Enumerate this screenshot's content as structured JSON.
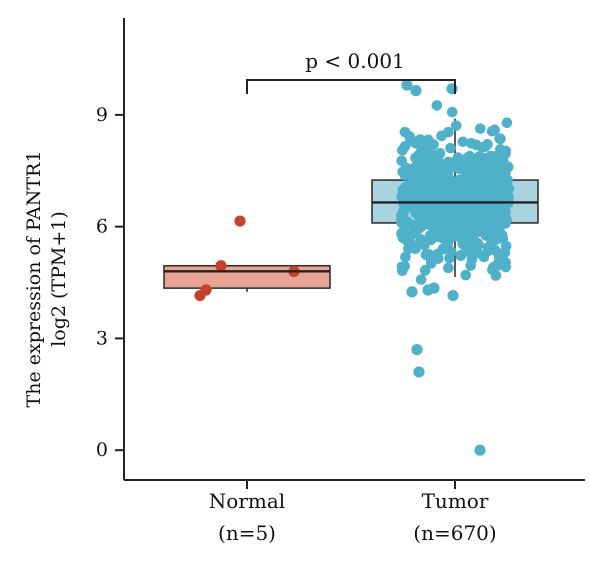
{
  "chart_data": {
    "type": "box",
    "ylabel_lines": [
      "The expression of PANTR1",
      "log2 (TPM+1)"
    ],
    "ylim": [
      -0.8,
      11.6
    ],
    "yticks": [
      0,
      3,
      6,
      9
    ],
    "yticklabels": [
      "0",
      "3",
      "6",
      "9"
    ],
    "categories": [
      {
        "name": "Normal",
        "n_label": "(n=5)"
      },
      {
        "name": "Tumor",
        "n_label": "(n=670)"
      }
    ],
    "significance": {
      "label": "p < 0.001",
      "groups": [
        0,
        1
      ]
    },
    "colors": {
      "normal_box": "#e8a394",
      "normal_points": "#c6412b",
      "tumor_box": "#a9d4df",
      "tumor_points": "#4fb0c9"
    },
    "boxes": [
      {
        "group": "Normal",
        "q1": 4.35,
        "median": 4.8,
        "q3": 4.95,
        "whisker_low": 4.25,
        "whisker_high": 4.95
      },
      {
        "group": "Tumor",
        "q1": 6.1,
        "median": 6.65,
        "q3": 7.25,
        "whisker_low": 4.65,
        "whisker_high": 8.9
      }
    ],
    "normal_points": [
      6.15,
      4.95,
      4.8,
      4.3,
      4.15
    ],
    "tumor_summary": {
      "n": 670,
      "center": 6.65,
      "min": 0.0,
      "max": 9.8
    },
    "tumor_outliers": [
      9.8,
      9.65,
      9.7,
      4.35,
      4.3,
      4.25,
      4.15,
      2.7,
      2.1,
      0.0
    ]
  }
}
